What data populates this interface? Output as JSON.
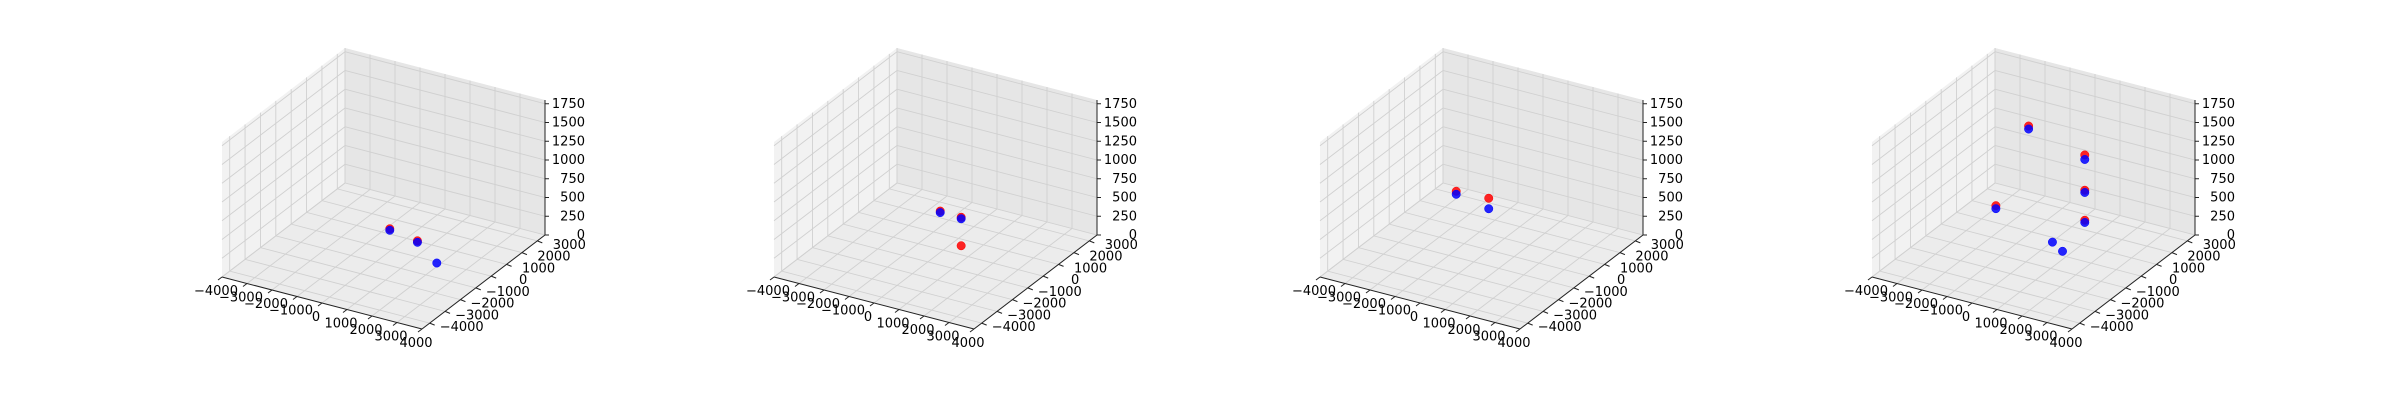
{
  "chart_data": [
    {
      "type": "scatter",
      "projection": "3d",
      "x_ticks": [
        "−4000",
        "−3000",
        "−2000",
        "−1000",
        "0",
        "1000",
        "2000",
        "3000",
        "4000"
      ],
      "y_ticks": [
        "−4000",
        "−3000",
        "−2000",
        "−1000",
        "0",
        "1000",
        "2000",
        "3000"
      ],
      "z_ticks": [
        "0",
        "250",
        "500",
        "750",
        "1000",
        "1250",
        "1500",
        "1750"
      ],
      "xlim": [
        -4000,
        4000
      ],
      "ylim": [
        -4000,
        3500
      ],
      "zlim": [
        0,
        1800
      ],
      "grid": true,
      "series": [
        {
          "color": "#ff0000",
          "points": [
            {
              "x": -700,
              "y": 1200,
              "z": 60
            },
            {
              "x": 800,
              "y": 600,
              "z": 130
            }
          ]
        },
        {
          "color": "#0000ff",
          "points": [
            {
              "x": -700,
              "y": 1200,
              "z": 40
            },
            {
              "x": 800,
              "y": 600,
              "z": 110
            },
            {
              "x": 2100,
              "y": -200,
              "z": 80
            }
          ]
        }
      ]
    },
    {
      "type": "scatter",
      "projection": "3d",
      "x_ticks": [
        "−4000",
        "−3000",
        "−2000",
        "−1000",
        "0",
        "1000",
        "2000",
        "3000",
        "4000"
      ],
      "y_ticks": [
        "−4000",
        "−3000",
        "−2000",
        "−1000",
        "0",
        "1000",
        "2000",
        "3000"
      ],
      "z_ticks": [
        "0",
        "250",
        "500",
        "750",
        "1000",
        "1250",
        "1500",
        "1750"
      ],
      "xlim": [
        -4000,
        4000
      ],
      "ylim": [
        -4000,
        3500
      ],
      "zlim": [
        0,
        1800
      ],
      "grid": true,
      "series": [
        {
          "color": "#ff0000",
          "points": [
            {
              "x": -500,
              "y": 800,
              "z": 380
            },
            {
              "x": 600,
              "y": 400,
              "z": 460
            },
            {
              "x": 600,
              "y": 400,
              "z": 80
            }
          ]
        },
        {
          "color": "#0000ff",
          "points": [
            {
              "x": -500,
              "y": 800,
              "z": 360
            },
            {
              "x": 600,
              "y": 400,
              "z": 440
            }
          ]
        }
      ]
    },
    {
      "type": "scatter",
      "projection": "3d",
      "x_ticks": [
        "−4000",
        "−3000",
        "−2000",
        "−1000",
        "0",
        "1000",
        "2000",
        "3000",
        "4000"
      ],
      "y_ticks": [
        "−4000",
        "−3000",
        "−2000",
        "−1000",
        "0",
        "1000",
        "2000",
        "3000"
      ],
      "z_ticks": [
        "0",
        "250",
        "500",
        "750",
        "1000",
        "1250",
        "1500",
        "1750"
      ],
      "xlim": [
        -4000,
        4000
      ],
      "ylim": [
        -4000,
        3500
      ],
      "zlim": [
        0,
        1800
      ],
      "grid": true,
      "series": [
        {
          "color": "#ff0000",
          "points": [
            {
              "x": -1700,
              "y": 800,
              "z": 540
            },
            {
              "x": -400,
              "y": 800,
              "z": 560
            }
          ]
        },
        {
          "color": "#0000ff",
          "points": [
            {
              "x": -1700,
              "y": 800,
              "z": 500
            },
            {
              "x": -400,
              "y": 800,
              "z": 420
            }
          ]
        }
      ]
    },
    {
      "type": "scatter",
      "projection": "3d",
      "x_ticks": [
        "−4000",
        "−3000",
        "−2000",
        "−1000",
        "0",
        "1000",
        "2000",
        "3000",
        "4000"
      ],
      "y_ticks": [
        "−4000",
        "−3000",
        "−2000",
        "−1000",
        "0",
        "1000",
        "2000",
        "3000"
      ],
      "z_ticks": [
        "0",
        "250",
        "500",
        "750",
        "1000",
        "1250",
        "1500",
        "1750"
      ],
      "xlim": [
        -4000,
        4000
      ],
      "ylim": [
        -4000,
        3500
      ],
      "zlim": [
        0,
        1800
      ],
      "grid": true,
      "series": [
        {
          "color": "#ff0000",
          "points": [
            {
              "x": -1800,
              "y": 200,
              "z": 440
            },
            {
              "x": -2000,
              "y": 2500,
              "z": 1100
            },
            {
              "x": 1100,
              "y": 1200,
              "z": 1200
            },
            {
              "x": 1100,
              "y": 1200,
              "z": 730
            },
            {
              "x": 1100,
              "y": 1200,
              "z": 330
            }
          ]
        },
        {
          "color": "#0000ff",
          "points": [
            {
              "x": -1800,
              "y": 200,
              "z": 400
            },
            {
              "x": -2000,
              "y": 2500,
              "z": 1060
            },
            {
              "x": 1100,
              "y": 1200,
              "z": 1140
            },
            {
              "x": 1100,
              "y": 1200,
              "z": 700
            },
            {
              "x": 1100,
              "y": 1200,
              "z": 300
            },
            {
              "x": 200,
              "y": 600,
              "z": 60
            },
            {
              "x": 800,
              "y": 300,
              "z": 40
            }
          ]
        }
      ]
    }
  ]
}
